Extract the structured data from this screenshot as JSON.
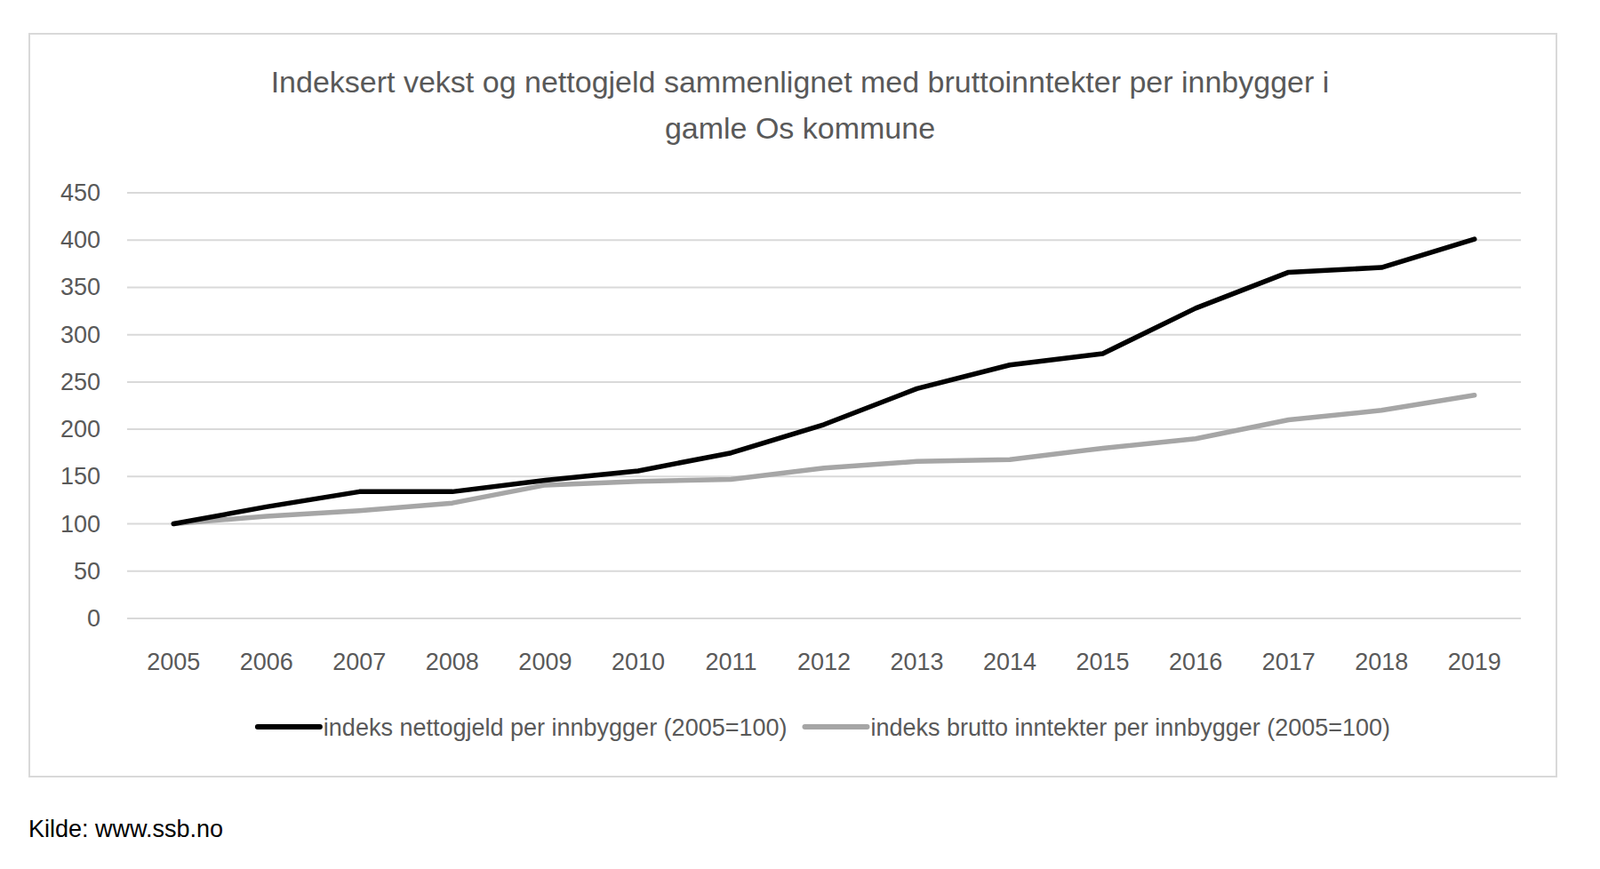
{
  "chart_data": {
    "type": "line",
    "title": "Indeksert vekst og nettogjeld sammenlignet med bruttoinntekter per innbygger i gamle Os kommune",
    "source": "Kilde: www.ssb.no",
    "categories": [
      "2005",
      "2006",
      "2007",
      "2008",
      "2009",
      "2010",
      "2011",
      "2012",
      "2013",
      "2014",
      "2015",
      "2016",
      "2017",
      "2018",
      "2019"
    ],
    "series": [
      {
        "name": "indeks nettogjeld per innbygger (2005=100)",
        "color": "#000000",
        "values": [
          100,
          118,
          134,
          134,
          146,
          156,
          175,
          205,
          243,
          268,
          280,
          328,
          366,
          371,
          401
        ]
      },
      {
        "name": "indeks brutto inntekter per innbygger (2005=100)",
        "color": "#a6a6a6",
        "values": [
          100,
          108,
          114,
          122,
          141,
          145,
          147,
          159,
          166,
          168,
          180,
          190,
          210,
          220,
          236
        ]
      }
    ],
    "ylim": [
      0,
      450
    ],
    "yticks": [
      0,
      50,
      100,
      150,
      200,
      250,
      300,
      350,
      400,
      450
    ],
    "grid": true,
    "legend": "bottom"
  }
}
